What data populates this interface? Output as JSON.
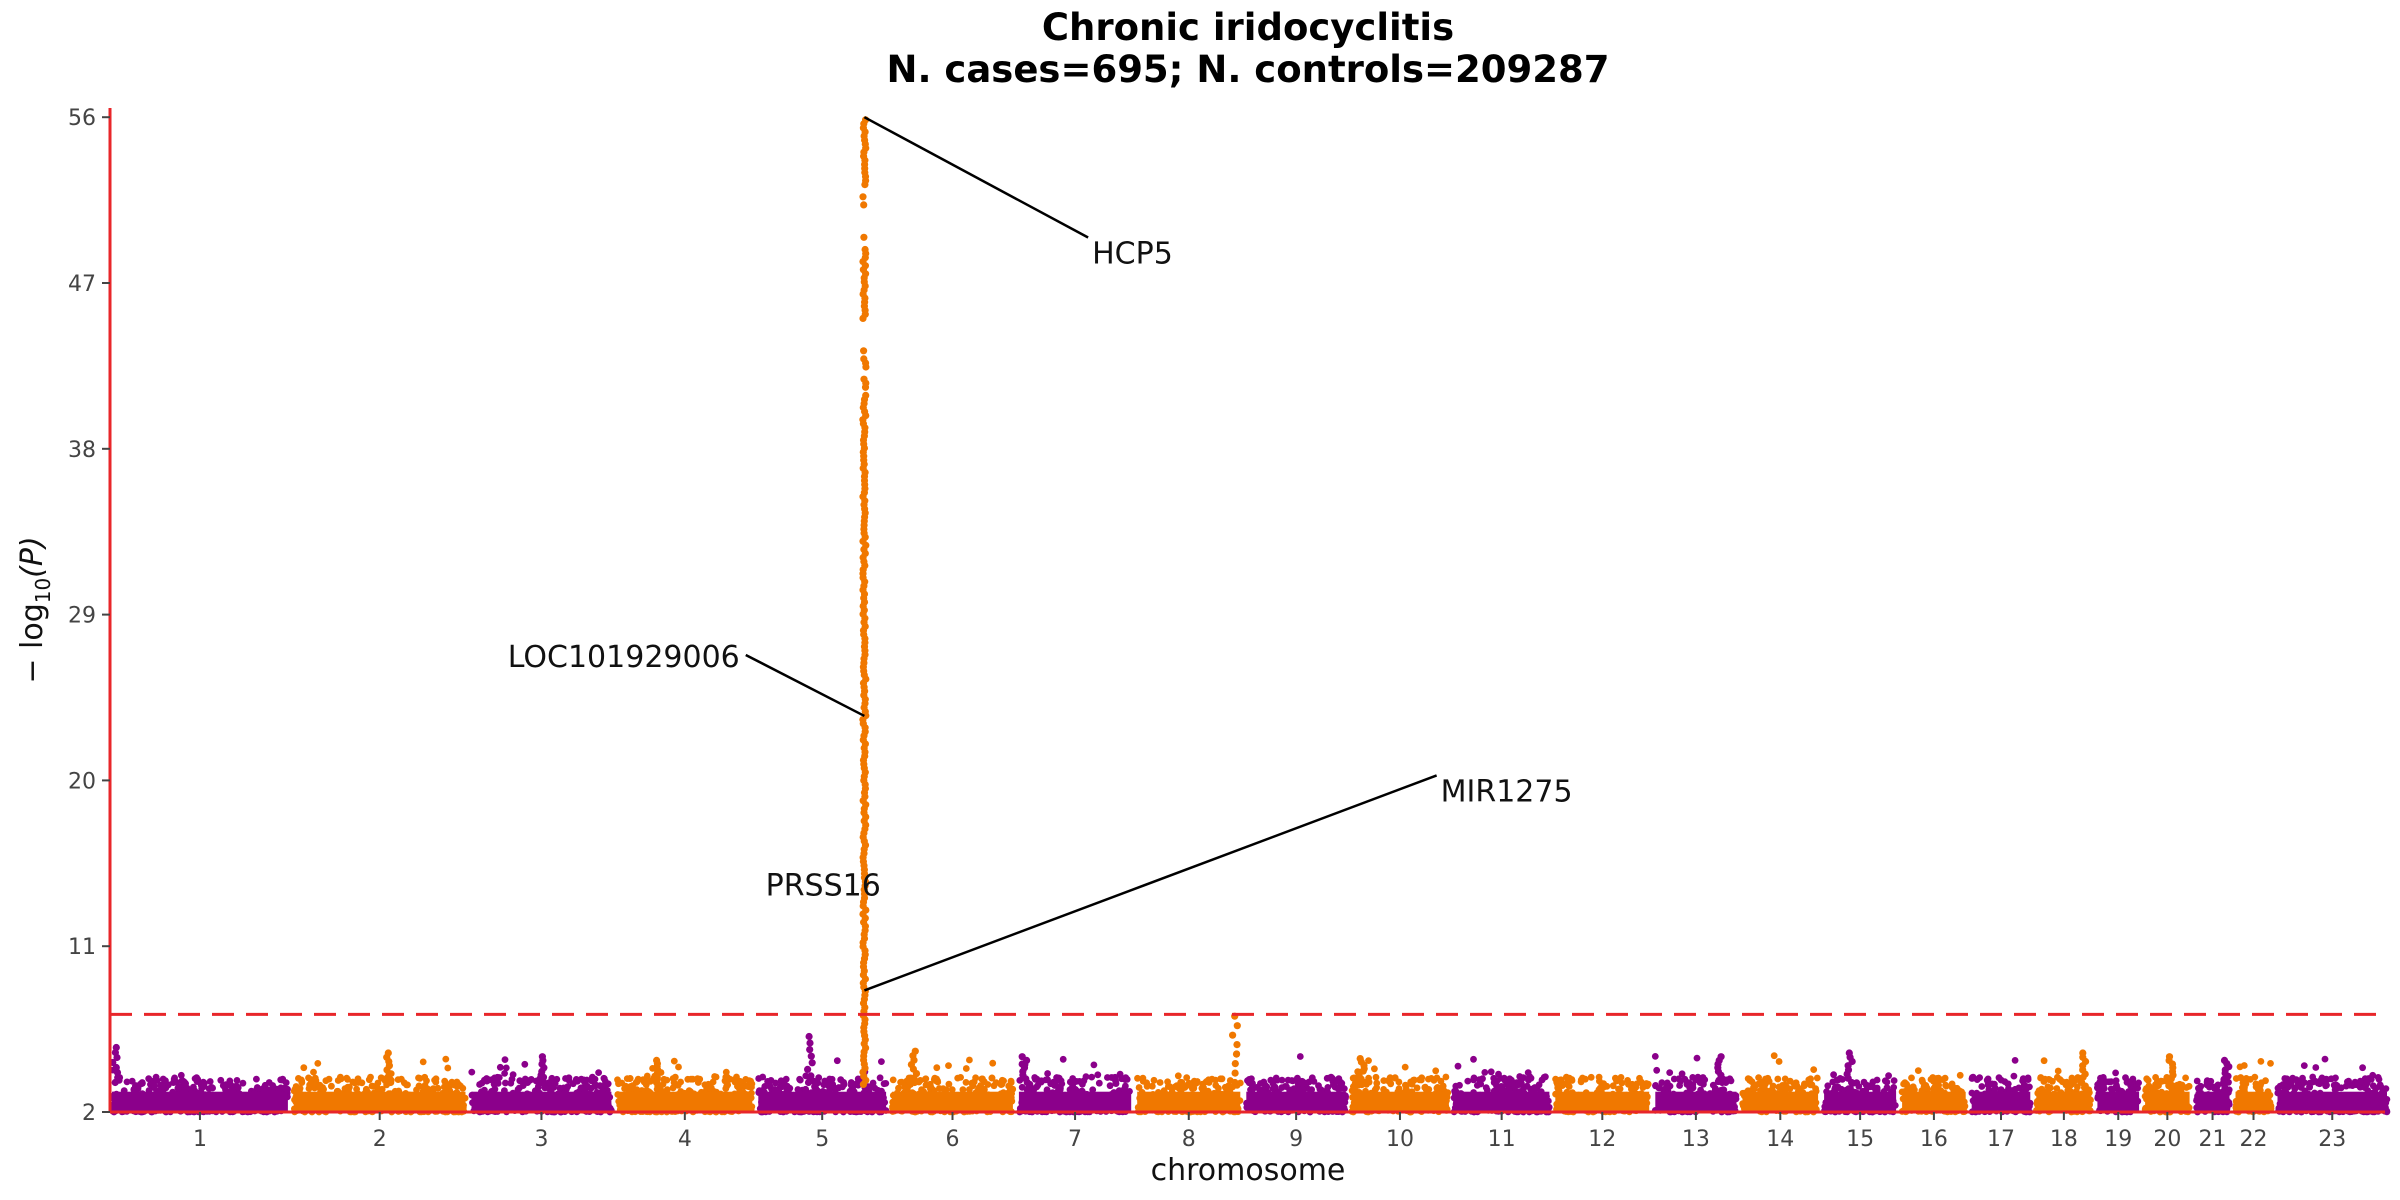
{
  "chart_data": {
    "type": "scatter",
    "title": "Chronic iridocyclitis",
    "subtitle": "N. cases=695; N. controls=209287",
    "xlabel": "chromosome",
    "ylabel": "−log10(P)",
    "ylabel_main": "− log",
    "ylabel_sub": "10",
    "ylabel_var": "(P)",
    "ylim": [
      2,
      56.5
    ],
    "yticks": [
      2,
      11,
      20,
      29,
      38,
      47,
      56
    ],
    "significance_threshold": 7.3,
    "colors": {
      "odd": "#8B008B",
      "even": "#F07800",
      "threshold": "#E8262A",
      "axis": "#E8262A"
    },
    "chromosomes": [
      {
        "label": "1",
        "length": 249
      },
      {
        "label": "2",
        "length": 243
      },
      {
        "label": "3",
        "length": 198
      },
      {
        "label": "4",
        "length": 191
      },
      {
        "label": "5",
        "length": 181
      },
      {
        "label": "6",
        "length": 171
      },
      {
        "label": "7",
        "length": 159
      },
      {
        "label": "8",
        "length": 146
      },
      {
        "label": "9",
        "length": 141
      },
      {
        "label": "10",
        "length": 136
      },
      {
        "label": "11",
        "length": 135
      },
      {
        "label": "12",
        "length": 133
      },
      {
        "label": "13",
        "length": 115
      },
      {
        "label": "14",
        "length": 107
      },
      {
        "label": "15",
        "length": 102
      },
      {
        "label": "16",
        "length": 90
      },
      {
        "label": "17",
        "length": 83
      },
      {
        "label": "18",
        "length": 78
      },
      {
        "label": "19",
        "length": 59
      },
      {
        "label": "20",
        "length": 63
      },
      {
        "label": "21",
        "length": 48
      },
      {
        "label": "22",
        "length": 51
      },
      {
        "label": "23",
        "length": 155
      }
    ],
    "peaks": [
      {
        "chrom": "1",
        "x": 0.02,
        "y": 5.5
      },
      {
        "chrom": "2",
        "x": 0.55,
        "y": 5.2
      },
      {
        "chrom": "3",
        "x": 0.5,
        "y": 5.0
      },
      {
        "chrom": "4",
        "x": 0.3,
        "y": 4.8
      },
      {
        "chrom": "5",
        "x": 0.4,
        "y": 6.1
      },
      {
        "chrom": "6",
        "x": 0.18,
        "y": 5.3
      },
      {
        "chrom": "7",
        "x": 0.05,
        "y": 5.0
      },
      {
        "chrom": "8",
        "x": 0.95,
        "y": 7.2
      },
      {
        "chrom": "10",
        "x": 0.1,
        "y": 4.9
      },
      {
        "chrom": "13",
        "x": 0.8,
        "y": 5.0
      },
      {
        "chrom": "15",
        "x": 0.35,
        "y": 5.2
      },
      {
        "chrom": "18",
        "x": 0.85,
        "y": 5.2
      },
      {
        "chrom": "20",
        "x": 0.6,
        "y": 5.0
      },
      {
        "chrom": "21",
        "x": 0.9,
        "y": 4.8
      }
    ],
    "main_locus": {
      "chrom": "5",
      "x_frac": 0.83,
      "y_max": 56.0
    },
    "annotations": [
      {
        "gene": "HCP5",
        "point_y": 56.0,
        "label_x": 7.15,
        "label_y": 48.6,
        "anchor": "start"
      },
      {
        "gene": "LOC101929006",
        "point_y": 23.5,
        "label_x": 4.4,
        "label_y": 26.7,
        "anchor": "end"
      },
      {
        "gene": "PRSS16",
        "point_y": 23.5,
        "label_x": 5.45,
        "label_y": 14.3,
        "anchor": "end",
        "no_line": true
      },
      {
        "gene": "MIR1275",
        "point_y": 8.6,
        "label_x": 10.4,
        "label_y": 19.4,
        "anchor": "start"
      }
    ]
  }
}
